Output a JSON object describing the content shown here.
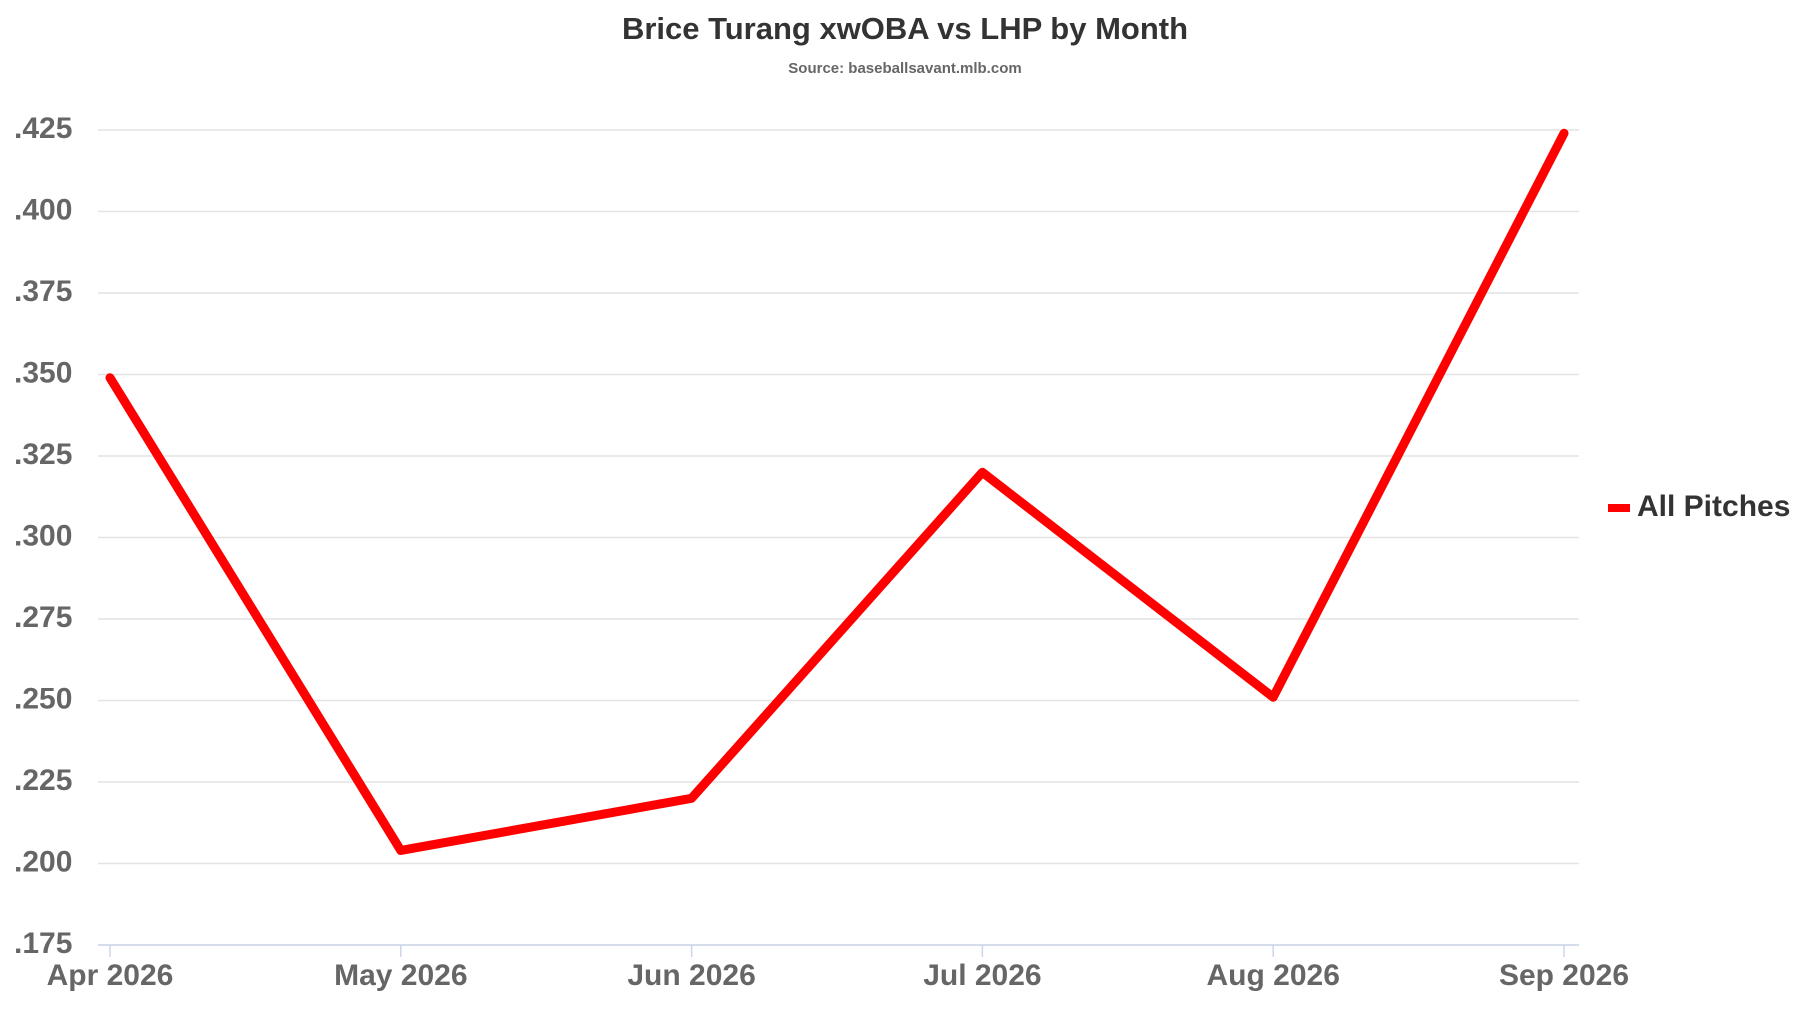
{
  "chart_data": {
    "type": "line",
    "title": "Brice Turang xwOBA vs LHP by Month",
    "subtitle": "Source: baseballsavant.mlb.com",
    "categories": [
      "Apr 2026",
      "May 2026",
      "Jun 2026",
      "Jul 2026",
      "Aug 2026",
      "Sep 2026"
    ],
    "series": [
      {
        "name": "All Pitches",
        "color": "#ff0000",
        "values": [
          0.349,
          0.204,
          0.22,
          0.32,
          0.251,
          0.424
        ]
      }
    ],
    "ylim": [
      0.175,
      0.425
    ],
    "yticks": [
      {
        "value": 0.175,
        "label": ".175"
      },
      {
        "value": 0.2,
        "label": ".200"
      },
      {
        "value": 0.225,
        "label": ".225"
      },
      {
        "value": 0.25,
        "label": ".250"
      },
      {
        "value": 0.275,
        "label": ".275"
      },
      {
        "value": 0.3,
        "label": ".300"
      },
      {
        "value": 0.325,
        "label": ".325"
      },
      {
        "value": 0.35,
        "label": ".350"
      },
      {
        "value": 0.375,
        "label": ".375"
      },
      {
        "value": 0.4,
        "label": ".400"
      },
      {
        "value": 0.425,
        "label": ".425"
      }
    ],
    "grid": true,
    "legend": "right"
  }
}
